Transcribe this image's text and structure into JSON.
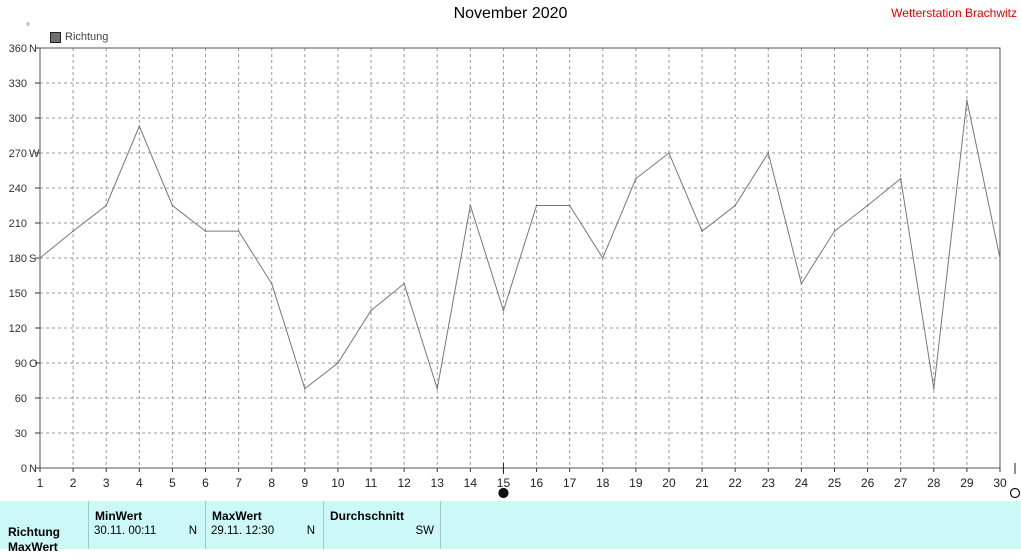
{
  "header": {
    "title": "November 2020",
    "station": "Wetterstation Brachwitz",
    "degree_mark": "°"
  },
  "colors": {
    "line": "#777777",
    "grid": "#999999",
    "station": "#e00000",
    "stats_bg": "#ccf8f8"
  },
  "chart_data": {
    "type": "line",
    "legend": "Richtung",
    "x": [
      1,
      2,
      3,
      4,
      5,
      6,
      7,
      8,
      9,
      10,
      11,
      12,
      13,
      14,
      15,
      16,
      17,
      18,
      19,
      20,
      21,
      22,
      23,
      24,
      25,
      26,
      27,
      28,
      29,
      30
    ],
    "series": [
      {
        "name": "Richtung",
        "values": [
          180,
          203,
          225,
          293,
          225,
          203,
          203,
          158,
          68,
          90,
          135,
          158,
          68,
          225,
          135,
          225,
          225,
          180,
          248,
          270,
          203,
          225,
          270,
          158,
          203,
          225,
          248,
          68,
          315,
          180
        ]
      }
    ],
    "xlim": [
      1,
      30
    ],
    "ylim": [
      0,
      360
    ],
    "y_ticks": [
      {
        "value": 0,
        "label": "0"
      },
      {
        "value": 30,
        "label": "30"
      },
      {
        "value": 60,
        "label": "60"
      },
      {
        "value": 90,
        "label": "90"
      },
      {
        "value": 120,
        "label": "120"
      },
      {
        "value": 150,
        "label": "150"
      },
      {
        "value": 180,
        "label": "180"
      },
      {
        "value": 210,
        "label": "210"
      },
      {
        "value": 240,
        "label": "240"
      },
      {
        "value": 270,
        "label": "270"
      },
      {
        "value": 300,
        "label": "300"
      },
      {
        "value": 330,
        "label": "330"
      },
      {
        "value": 360,
        "label": "360"
      }
    ],
    "compass_ticks": [
      {
        "value": 0,
        "label": "N"
      },
      {
        "value": 90,
        "label": "O"
      },
      {
        "value": 180,
        "label": "S"
      },
      {
        "value": 270,
        "label": "W"
      },
      {
        "value": 360,
        "label": "N"
      }
    ],
    "x_tick_labels": [
      "1",
      "2",
      "3",
      "4",
      "5",
      "6",
      "7",
      "8",
      "9",
      "10",
      "11",
      "12",
      "13",
      "14",
      "15",
      "16",
      "17",
      "18",
      "19",
      "20",
      "21",
      "22",
      "23",
      "24",
      "25",
      "26",
      "27",
      "28",
      "29",
      "30"
    ],
    "moon_markers": [
      {
        "day": 15,
        "phase": "new-moon"
      },
      {
        "day": 30,
        "phase": "full-moon"
      }
    ],
    "grid": true,
    "legend_position": "top-left"
  },
  "stats": {
    "row_label": "Richtung",
    "row_label_2": "MaxWert",
    "min": {
      "header": "MinWert",
      "time": "30.11.  00:11",
      "value": "N"
    },
    "max": {
      "header": "MaxWert",
      "time": "29.11.  12:30",
      "value": "N"
    },
    "avg": {
      "header": "Durchschnitt",
      "value": "SW"
    }
  }
}
